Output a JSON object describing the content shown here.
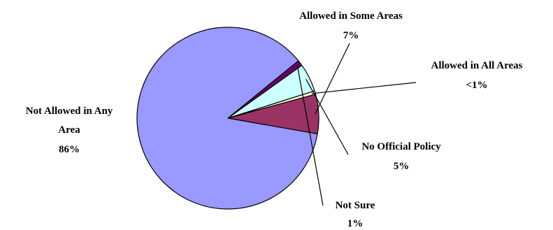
{
  "chart_data": {
    "type": "pie",
    "title": "",
    "slices": [
      {
        "label_lines": [
          "Allowed in Some Areas"
        ],
        "value_label": "7%",
        "value": 7,
        "color": "#993366"
      },
      {
        "label_lines": [
          "Allowed in All Areas"
        ],
        "value_label": "<1%",
        "value": 0.6,
        "color": "#ffffcc"
      },
      {
        "label_lines": [
          "No Official Policy"
        ],
        "value_label": "5%",
        "value": 5,
        "color": "#ccffff"
      },
      {
        "label_lines": [
          "Not Sure"
        ],
        "value_label": "1%",
        "value": 1,
        "color": "#660066"
      },
      {
        "label_lines": [
          "Not Allowed in Any",
          "Area"
        ],
        "value_label": "86%",
        "value": 86,
        "color": "#9999ff"
      }
    ],
    "legend": "none",
    "grid": false
  }
}
